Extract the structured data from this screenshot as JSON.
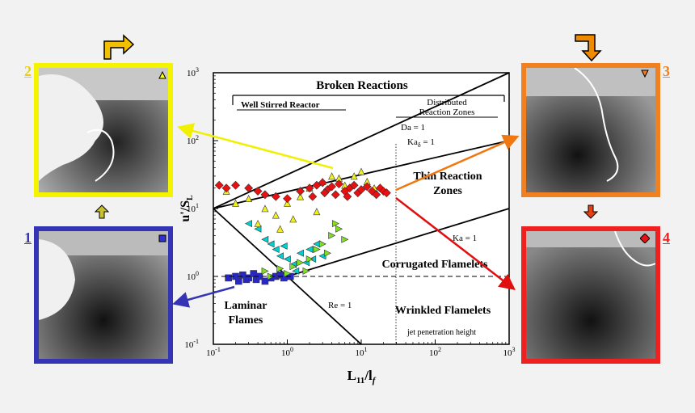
{
  "colors": {
    "panel1": "#3434b4",
    "panel2": "#f4f400",
    "panel3": "#f08020",
    "panel4": "#ee2020",
    "yellow": "#f0f000",
    "orange": "#f07810",
    "red": "#e01010"
  },
  "panels": [
    {
      "id": "1",
      "label": "1",
      "marker": "square-icon",
      "border": "#3434b4"
    },
    {
      "id": "2",
      "label": "2",
      "marker": "triangle-up-icon",
      "border": "#f4f400"
    },
    {
      "id": "3",
      "label": "3",
      "marker": "triangle-down-icon",
      "border": "#f08020"
    },
    {
      "id": "4",
      "label": "4",
      "marker": "diamond-icon",
      "border": "#ee2020"
    }
  ],
  "chart_data": {
    "type": "scatter",
    "xscale": "log",
    "yscale": "log",
    "xlim": [
      0.1,
      1000
    ],
    "ylim": [
      0.1,
      1000
    ],
    "xlabel_main": "L",
    "xlabel_sub": "11",
    "xlabel_tail": "/l",
    "xlabel_tail_sub": "f",
    "ylabel_main": "u'/S",
    "ylabel_sub": "L",
    "x_ticks": [
      {
        "value": 0.1,
        "base": "10",
        "exp": "-1"
      },
      {
        "value": 1,
        "base": "10",
        "exp": "0"
      },
      {
        "value": 10,
        "base": "10",
        "exp": "1"
      },
      {
        "value": 100,
        "base": "10",
        "exp": "2"
      },
      {
        "value": 1000,
        "base": "10",
        "exp": "3"
      }
    ],
    "y_ticks": [
      {
        "value": 0.1,
        "base": "10",
        "exp": "-1"
      },
      {
        "value": 1,
        "base": "10",
        "exp": "0"
      },
      {
        "value": 10,
        "base": "10",
        "exp": "1"
      },
      {
        "value": 100,
        "base": "10",
        "exp": "2"
      },
      {
        "value": 1000,
        "base": "10",
        "exp": "3"
      }
    ],
    "regions": {
      "broken": "Broken Reactions",
      "wsr": "Well Stirred Reactor",
      "distributed1": "Distributed",
      "distributed2": "Reaction Zones",
      "thin1": "Thin Reaction",
      "thin2": "Zones",
      "corrugated": "Corrugated Flamelets",
      "wrinkled": "Wrinkled Flamelets",
      "laminar1": "Laminar",
      "laminar2": "Flames"
    },
    "line_labels": {
      "da": "Da = 1",
      "ka_delta": "Ka",
      "ka_delta_sub": "δ",
      "ka_delta_tail": " = 1",
      "ka": "Ka = 1",
      "re": "Re = 1",
      "jet": "jet penetration height"
    },
    "lines": [
      {
        "name": "Da = 1",
        "points": [
          [
            0.1,
            10
          ],
          [
            1000,
            1000
          ]
        ]
      },
      {
        "name": "Ka_delta = 1",
        "points": [
          [
            0.1,
            10
          ],
          [
            1000,
            100
          ]
        ]
      },
      {
        "name": "Ka = 1",
        "points": [
          [
            1,
            1
          ],
          [
            1000,
            10
          ]
        ]
      },
      {
        "name": "Re = 1",
        "points": [
          [
            0.1,
            10
          ],
          [
            10,
            0.1
          ]
        ]
      }
    ],
    "series": [
      {
        "marker": "square",
        "color": "#2828c8",
        "points": [
          [
            0.16,
            0.95
          ],
          [
            0.2,
            1.0
          ],
          [
            0.22,
            0.85
          ],
          [
            0.25,
            1.05
          ],
          [
            0.28,
            0.9
          ],
          [
            0.3,
            0.95
          ],
          [
            0.35,
            1.1
          ],
          [
            0.38,
            0.9
          ],
          [
            0.42,
            1.0
          ],
          [
            0.5,
            0.85
          ],
          [
            0.6,
            0.95
          ],
          [
            0.7,
            1.0
          ],
          [
            0.8,
            1.05
          ],
          [
            0.9,
            0.95
          ],
          [
            1.1,
            1.0
          ]
        ]
      },
      {
        "marker": "triangle-left",
        "color": "#00d0d0",
        "points": [
          [
            0.3,
            6
          ],
          [
            0.4,
            5
          ],
          [
            0.5,
            3.5
          ],
          [
            0.6,
            3
          ],
          [
            0.7,
            2.5
          ],
          [
            0.8,
            2
          ],
          [
            1,
            1.8
          ],
          [
            1.2,
            1.5
          ],
          [
            1.5,
            2.2
          ],
          [
            2,
            2.5
          ],
          [
            2.5,
            3
          ],
          [
            1.8,
            1.6
          ],
          [
            3,
            2
          ],
          [
            0.9,
            2.8
          ],
          [
            1.3,
            1.2
          ],
          [
            2.2,
            1.8
          ]
        ]
      },
      {
        "marker": "triangle-right",
        "color": "#80e020",
        "points": [
          [
            0.5,
            1.2
          ],
          [
            0.6,
            1.0
          ],
          [
            0.8,
            1.3
          ],
          [
            1,
            1.1
          ],
          [
            1.2,
            1.4
          ],
          [
            1.5,
            1.6
          ],
          [
            2,
            1.8
          ],
          [
            2.5,
            2.5
          ],
          [
            3,
            3
          ],
          [
            4,
            4
          ],
          [
            5,
            5
          ],
          [
            6,
            3.5
          ],
          [
            3.5,
            2.2
          ],
          [
            1.8,
            1.2
          ],
          [
            4.5,
            6
          ]
        ]
      },
      {
        "marker": "triangle-up",
        "color": "#f0f020",
        "points": [
          [
            0.15,
            18
          ],
          [
            0.2,
            12
          ],
          [
            0.3,
            14
          ],
          [
            0.5,
            10
          ],
          [
            0.7,
            8
          ],
          [
            1,
            12
          ],
          [
            1.5,
            15
          ],
          [
            2,
            20
          ],
          [
            3,
            25
          ],
          [
            4,
            30
          ],
          [
            5,
            28
          ],
          [
            6,
            22
          ],
          [
            8,
            30
          ],
          [
            10,
            35
          ],
          [
            12,
            25
          ],
          [
            15,
            20
          ],
          [
            0.4,
            6
          ],
          [
            0.8,
            5
          ],
          [
            1.2,
            7
          ],
          [
            2.5,
            9
          ]
        ]
      },
      {
        "marker": "diamond",
        "color": "#e81010",
        "points": [
          [
            0.12,
            22
          ],
          [
            0.15,
            20
          ],
          [
            0.2,
            22
          ],
          [
            0.3,
            20
          ],
          [
            0.4,
            18
          ],
          [
            0.5,
            16
          ],
          [
            0.7,
            15
          ],
          [
            1,
            14
          ],
          [
            1.5,
            18
          ],
          [
            2,
            20
          ],
          [
            2.5,
            22
          ],
          [
            3,
            24
          ],
          [
            3.5,
            19
          ],
          [
            4,
            21
          ],
          [
            5,
            23
          ],
          [
            6,
            18
          ],
          [
            7,
            20
          ],
          [
            8,
            22
          ],
          [
            9,
            17
          ],
          [
            10,
            19
          ],
          [
            12,
            21
          ],
          [
            14,
            18
          ],
          [
            16,
            16
          ],
          [
            18,
            20
          ],
          [
            20,
            18
          ],
          [
            22,
            17
          ],
          [
            2.2,
            15
          ],
          [
            3.2,
            17
          ],
          [
            4.5,
            16
          ],
          [
            6.5,
            15
          ]
        ]
      }
    ]
  }
}
